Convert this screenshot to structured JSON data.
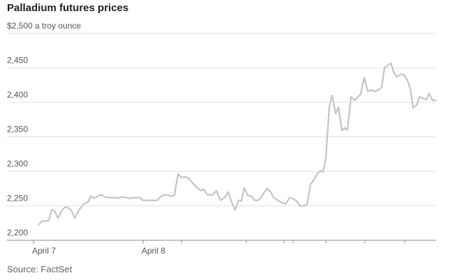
{
  "chart_data": {
    "type": "line",
    "title": "Palladium futures prices",
    "source": "Source: FactSet",
    "x": [
      0,
      5,
      11,
      15,
      19,
      23,
      28,
      34,
      38,
      43,
      47,
      52,
      57,
      63,
      67,
      71,
      75,
      80,
      85,
      90,
      95,
      100,
      110,
      115,
      120,
      125,
      130,
      140,
      145,
      150,
      160,
      170,
      175,
      180,
      185,
      190,
      195,
      200,
      205,
      210,
      215,
      222,
      228,
      233,
      237,
      242,
      250,
      255,
      261,
      267,
      272,
      277,
      282,
      287,
      291,
      295,
      300,
      305,
      310,
      315,
      319,
      324,
      328,
      333,
      337,
      343,
      350,
      355,
      360,
      365,
      370,
      375,
      380,
      385,
      390,
      395,
      400,
      405,
      408,
      412,
      417,
      421,
      426,
      430,
      435,
      439,
      443,
      448,
      453,
      458,
      462,
      467,
      472,
      477,
      482,
      487,
      492,
      496,
      501,
      505,
      510,
      514,
      519,
      524,
      529,
      533,
      537,
      542,
      546,
      551,
      556,
      560,
      565,
      570
    ],
    "series": [
      {
        "color": "#c4c4c4",
        "values": [
          2222,
          2228,
          2228,
          2229,
          2244,
          2243,
          2232,
          2244,
          2248,
          2247,
          2244,
          2232,
          2242,
          2250,
          2254,
          2255,
          2264,
          2261,
          2264,
          2266,
          2263,
          2262,
          2262,
          2261,
          2263,
          2262,
          2261,
          2262,
          2262,
          2258,
          2258,
          2258,
          2263,
          2266,
          2266,
          2264,
          2265,
          2296,
          2291,
          2292,
          2290,
          2282,
          2276,
          2272,
          2274,
          2266,
          2266,
          2272,
          2258,
          2262,
          2270,
          2255,
          2244,
          2258,
          2257,
          2276,
          2265,
          2264,
          2258,
          2258,
          2262,
          2270,
          2275,
          2270,
          2262,
          2258,
          2254,
          2253,
          2262,
          2260,
          2257,
          2250,
          2250,
          2252,
          2281,
          2288,
          2297,
          2301,
          2299,
          2320,
          2394,
          2410,
          2384,
          2393,
          2359,
          2363,
          2360,
          2408,
          2403,
          2408,
          2412,
          2436,
          2416,
          2418,
          2416,
          2418,
          2422,
          2450,
          2454,
          2457,
          2442,
          2437,
          2441,
          2440,
          2432,
          2420,
          2392,
          2396,
          2408,
          2406,
          2404,
          2413,
          2403,
          2403
        ]
      }
    ],
    "xlim": [
      -7,
      570
    ],
    "xticks": [
      {
        "value": -7,
        "label": "April 7"
      },
      {
        "value": 150,
        "label": "April 8"
      }
    ],
    "xminor": [
      205,
      298,
      352,
      365,
      412,
      468,
      525
    ],
    "ylim": [
      2200,
      2500
    ],
    "yticks": [
      {
        "value": 2200,
        "label": "2,200"
      },
      {
        "value": 2250,
        "label": "2,250"
      },
      {
        "value": 2300,
        "label": "2,300"
      },
      {
        "value": 2350,
        "label": "2,350"
      },
      {
        "value": 2400,
        "label": "2,400"
      },
      {
        "value": 2450,
        "label": "2,450"
      },
      {
        "value": 2500,
        "label": "$2,500 a troy ounce"
      }
    ],
    "grid": true
  }
}
